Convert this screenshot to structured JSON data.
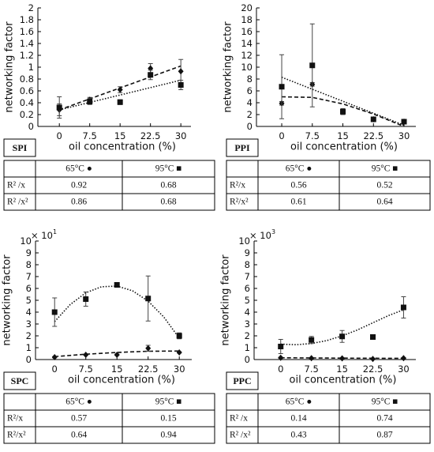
{
  "chart_data": [
    {
      "type": "scatter",
      "label": "SPI",
      "y_label": "networking factor",
      "x_label": "oil concentration (%)",
      "x": [
        0,
        7.5,
        15,
        22.5,
        30
      ],
      "xlim": [
        -5.3,
        32.5
      ],
      "xticks": [
        0,
        7.5,
        15,
        22.5,
        30
      ],
      "ylim": [
        0,
        2
      ],
      "yticks": [
        0,
        0.2,
        0.4,
        0.6,
        0.8,
        1,
        1.2,
        1.4,
        1.6,
        1.8,
        2
      ],
      "series": [
        {
          "name": "65°C ●",
          "marker": "circle",
          "color": "#111",
          "values": [
            0.28,
            0.45,
            0.62,
            0.98,
            0.93
          ],
          "errors": [
            0.1,
            0.04,
            0.05,
            0.08,
            0.2
          ],
          "fit": {
            "style": "dashed",
            "x": [
              0,
              30
            ],
            "values": [
              0.28,
              1.02
            ]
          }
        },
        {
          "name": "95°C ■",
          "marker": "square",
          "color": "#111",
          "values": [
            0.32,
            0.42,
            0.41,
            0.87,
            0.7
          ],
          "errors": [
            0.18,
            0.05,
            0.04,
            0.08,
            0.08
          ],
          "fit": {
            "style": "dotted",
            "x": [
              0,
              30
            ],
            "values": [
              0.28,
              0.78
            ]
          }
        }
      ],
      "table": {
        "rows": [
          {
            "label": "R² /x",
            "values": [
              0.92,
              0.68
            ]
          },
          {
            "label": "R² /x²",
            "values": [
              0.86,
              0.68
            ]
          }
        ]
      }
    },
    {
      "type": "scatter",
      "label": "PPI",
      "y_label": "networking factor",
      "x_label": "oil concentration (%)",
      "x": [
        0,
        7.5,
        15,
        22.5,
        30
      ],
      "xlim": [
        -6.2,
        32.9
      ],
      "xticks": [
        0,
        7.5,
        15,
        22.5,
        30
      ],
      "ylim": [
        0,
        20
      ],
      "yticks": [
        0,
        2,
        4,
        6,
        8,
        10,
        12,
        14,
        16,
        18,
        20
      ],
      "series": [
        {
          "name": "65°C ●",
          "marker": "circle",
          "color": "#111",
          "values": [
            3.9,
            7.1,
            2.5,
            1.2,
            0.8
          ],
          "errors": [
            0.3,
            0.3,
            0.3,
            0.3,
            0.2
          ],
          "fit": {
            "style": "dashed",
            "x": [
              0,
              7.5,
              15,
              22.5,
              30
            ],
            "values": [
              5,
              4.9,
              3.8,
              2.1,
              0
            ]
          }
        },
        {
          "name": "95°C ■",
          "marker": "square",
          "color": "#111",
          "values": [
            6.7,
            10.3,
            2.5,
            1.2,
            0.8
          ],
          "errors": [
            5.4,
            7,
            0.5,
            0.4,
            0.3
          ],
          "fit": {
            "style": "dotted",
            "x": [
              0,
              30
            ],
            "values": [
              8.3,
              0.2
            ]
          }
        }
      ],
      "table": {
        "rows": [
          {
            "label": "R²/x",
            "values": [
              0.56,
              0.52
            ]
          },
          {
            "label": "R²/x²",
            "values": [
              0.61,
              0.64
            ]
          }
        ]
      }
    },
    {
      "type": "scatter",
      "label": "SPC",
      "y_label": "networking factor",
      "x_label": "oil concentration (%)",
      "y_scale": {
        "base": "× 10",
        "exponent": 1
      },
      "x": [
        0,
        7.5,
        15,
        22.5,
        30
      ],
      "xlim": [
        -4.6,
        33
      ],
      "xticks": [
        0,
        7.5,
        15,
        22.5,
        30
      ],
      "ylim": [
        0,
        10
      ],
      "yticks": [
        0,
        1,
        2,
        3,
        4,
        5,
        6,
        7,
        8,
        9,
        10
      ],
      "series": [
        {
          "name": "65°C ●",
          "marker": "circle",
          "color": "#111",
          "values": [
            0.2,
            0.4,
            0.4,
            0.95,
            0.6
          ],
          "errors": [
            0.05,
            0.05,
            0.05,
            0.25,
            0.05
          ],
          "fit": {
            "style": "dashed",
            "x": [
              0,
              7.5,
              15,
              22.5,
              30
            ],
            "values": [
              0.25,
              0.45,
              0.6,
              0.7,
              0.72
            ]
          }
        },
        {
          "name": "95°C ■",
          "marker": "square",
          "color": "#111",
          "values": [
            4,
            5.1,
            6.3,
            5.15,
            2
          ],
          "errors": [
            1.2,
            0.6,
            0.15,
            1.9,
            0.25
          ],
          "fit": {
            "style": "dotted",
            "x": [
              0,
              3.75,
              7.5,
              11.25,
              15,
              18.75,
              22.5,
              26.25,
              30
            ],
            "values": [
              3.2,
              4.64,
              5.63,
              6.14,
              6.2,
              5.8,
              4.93,
              3.6,
              1.8
            ]
          }
        }
      ],
      "table": {
        "rows": [
          {
            "label": "R²/x",
            "values": [
              0.57,
              0.15
            ]
          },
          {
            "label": "R²/x²",
            "values": [
              0.64,
              0.94
            ]
          }
        ]
      }
    },
    {
      "type": "scatter",
      "label": "PPC",
      "y_label": "networking factor",
      "x_label": "oil concentration (%)",
      "y_scale": {
        "base": "× 10",
        "exponent": 3
      },
      "x": [
        0,
        7.5,
        15,
        22.5,
        30
      ],
      "xlim": [
        -6.5,
        33
      ],
      "xticks": [
        0,
        7.5,
        15,
        22.5,
        30
      ],
      "ylim": [
        0,
        10
      ],
      "yticks": [
        0,
        1,
        2,
        3,
        4,
        5,
        6,
        7,
        8,
        9,
        10
      ],
      "series": [
        {
          "name": "65°C ●",
          "marker": "circle",
          "color": "#111",
          "values": [
            0.15,
            0.12,
            0.1,
            0.05,
            0.12
          ],
          "errors": [
            0.05,
            0.05,
            0.05,
            0.03,
            0.05
          ],
          "fit": {
            "style": "dashed",
            "x": [
              0,
              15,
              30
            ],
            "values": [
              0.15,
              0.12,
              0.1
            ]
          }
        },
        {
          "name": "95°C ■",
          "marker": "square",
          "color": "#111",
          "values": [
            1.1,
            1.65,
            1.95,
            1.9,
            4.4
          ],
          "errors": [
            0.6,
            0.3,
            0.5,
            0.1,
            0.9
          ],
          "fit": {
            "style": "dotted",
            "x": [
              0,
              3.75,
              7.5,
              11.25,
              15,
              18.75,
              22.5,
              26.25,
              30
            ],
            "values": [
              1.3,
              1.25,
              1.35,
              1.6,
              2,
              2.5,
              3.1,
              3.7,
              4.2
            ]
          }
        }
      ],
      "table": {
        "rows": [
          {
            "label": "R² /x",
            "values": [
              0.14,
              0.74
            ]
          },
          {
            "label": "R² /x²",
            "values": [
              0.43,
              0.87
            ]
          }
        ]
      }
    }
  ]
}
